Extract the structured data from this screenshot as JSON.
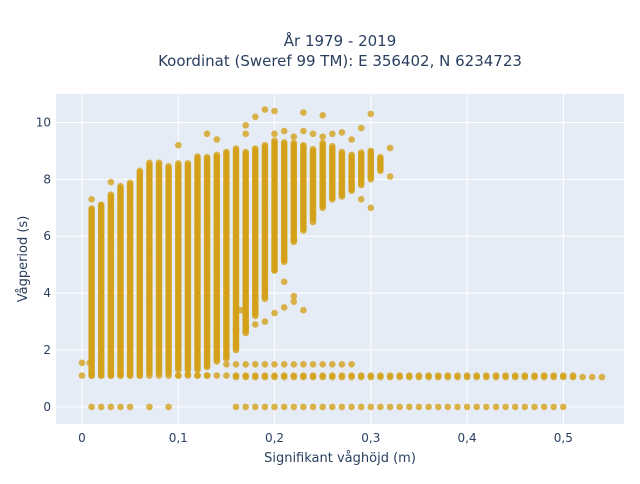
{
  "chart_data": {
    "type": "scatter",
    "title_line1": "År 1979 - 2019",
    "title_line2": "Koordinat (Sweref 99 TM): E 356402, N 6234723",
    "xlabel": "Signifikant våghöjd (m)",
    "ylabel": "Vågperiod (s)",
    "xlim": [
      -0.027,
      0.563
    ],
    "ylim": [
      -0.6,
      11
    ],
    "x_ticks": [
      0,
      0.1,
      0.2,
      0.3,
      0.4,
      0.5
    ],
    "x_tick_labels": [
      "0",
      "0,1",
      "0,2",
      "0,3",
      "0,4",
      "0,5"
    ],
    "y_ticks": [
      0,
      2,
      4,
      6,
      8,
      10
    ],
    "y_tick_labels": [
      "0",
      "2",
      "4",
      "6",
      "8",
      "10"
    ],
    "grid": true,
    "colors": {
      "marker": "#d4a017",
      "plot_bg": "#e5ecf6",
      "grid": "#ffffff"
    },
    "series": [
      {
        "name": "",
        "points": [
          [
            0.0,
            1.55
          ],
          [
            0.008,
            1.55
          ],
          [
            0.01,
            0.0
          ],
          [
            0.02,
            0.0
          ],
          [
            0.03,
            0.0
          ],
          [
            0.04,
            0.0
          ],
          [
            0.05,
            0.0
          ],
          [
            0.07,
            0.0
          ],
          [
            0.09,
            0.0
          ],
          [
            0.01,
            7.3
          ],
          [
            0.02,
            7.1
          ],
          [
            0.03,
            7.9
          ],
          [
            0.1,
            9.2
          ],
          [
            0.13,
            9.6
          ],
          [
            0.14,
            9.4
          ],
          [
            0.17,
            9.6
          ],
          [
            0.17,
            9.9
          ],
          [
            0.18,
            10.2
          ],
          [
            0.19,
            10.45
          ],
          [
            0.2,
            10.4
          ],
          [
            0.23,
            10.35
          ],
          [
            0.25,
            10.25
          ],
          [
            0.29,
            9.8
          ],
          [
            0.3,
            10.3
          ],
          [
            0.2,
            9.6
          ],
          [
            0.21,
            9.7
          ],
          [
            0.22,
            9.5
          ],
          [
            0.23,
            9.7
          ],
          [
            0.24,
            9.6
          ],
          [
            0.25,
            9.5
          ],
          [
            0.26,
            9.6
          ],
          [
            0.27,
            9.65
          ],
          [
            0.28,
            9.4
          ],
          [
            0.3,
            9.0
          ],
          [
            0.32,
            9.1
          ],
          [
            0.32,
            8.1
          ],
          [
            0.3,
            7.0
          ],
          [
            0.29,
            7.3
          ],
          [
            0.27,
            7.5
          ],
          [
            0.25,
            7.8
          ],
          [
            0.24,
            6.5
          ],
          [
            0.22,
            5.9
          ],
          [
            0.21,
            5.3
          ],
          [
            0.2,
            4.8
          ],
          [
            0.21,
            4.4
          ],
          [
            0.22,
            3.9
          ],
          [
            0.21,
            3.5
          ],
          [
            0.2,
            3.3
          ],
          [
            0.19,
            3.0
          ],
          [
            0.18,
            2.9
          ],
          [
            0.17,
            2.8
          ],
          [
            0.16,
            2.7
          ],
          [
            0.23,
            3.4
          ],
          [
            0.22,
            3.7
          ],
          [
            0.18,
            3.5
          ],
          [
            0.17,
            3.7
          ],
          [
            0.165,
            3.4
          ],
          [
            0.13,
            1.1
          ],
          [
            0.12,
            1.1
          ],
          [
            0.11,
            1.15
          ],
          [
            0.1,
            1.1
          ]
        ],
        "bands": [
          {
            "x0": 0.0,
            "x1": 0.51,
            "y": 1.1
          },
          {
            "x0": 0.15,
            "x1": 0.28,
            "y": 1.5
          },
          {
            "x0": 0.16,
            "x1": 0.54,
            "y": 1.05
          },
          {
            "x0": 0.16,
            "x1": 0.5,
            "y": 0.0
          }
        ],
        "columns": [
          [
            0.01,
            1.1,
            7.0
          ],
          [
            0.02,
            1.1,
            7.1
          ],
          [
            0.03,
            1.1,
            7.5
          ],
          [
            0.04,
            1.1,
            7.8
          ],
          [
            0.05,
            1.1,
            7.9
          ],
          [
            0.06,
            1.1,
            8.3
          ],
          [
            0.07,
            1.2,
            8.6
          ],
          [
            0.08,
            1.2,
            8.6
          ],
          [
            0.09,
            1.2,
            8.5
          ],
          [
            0.1,
            1.3,
            8.6
          ],
          [
            0.11,
            1.3,
            8.6
          ],
          [
            0.12,
            1.3,
            8.8
          ],
          [
            0.13,
            1.4,
            8.8
          ],
          [
            0.14,
            1.6,
            8.9
          ],
          [
            0.15,
            1.7,
            9.0
          ],
          [
            0.16,
            2.0,
            9.1
          ],
          [
            0.17,
            2.6,
            9.0
          ],
          [
            0.18,
            3.2,
            9.1
          ],
          [
            0.19,
            3.8,
            9.2
          ],
          [
            0.2,
            4.8,
            9.4
          ],
          [
            0.21,
            5.1,
            9.3
          ],
          [
            0.22,
            5.8,
            9.3
          ],
          [
            0.23,
            6.2,
            9.2
          ],
          [
            0.24,
            6.6,
            9.1
          ],
          [
            0.25,
            7.0,
            9.3
          ],
          [
            0.26,
            7.3,
            9.2
          ],
          [
            0.27,
            7.4,
            9.0
          ],
          [
            0.28,
            7.6,
            8.9
          ],
          [
            0.29,
            7.8,
            9.0
          ],
          [
            0.3,
            8.0,
            9.0
          ],
          [
            0.31,
            8.3,
            8.8
          ]
        ]
      }
    ]
  }
}
